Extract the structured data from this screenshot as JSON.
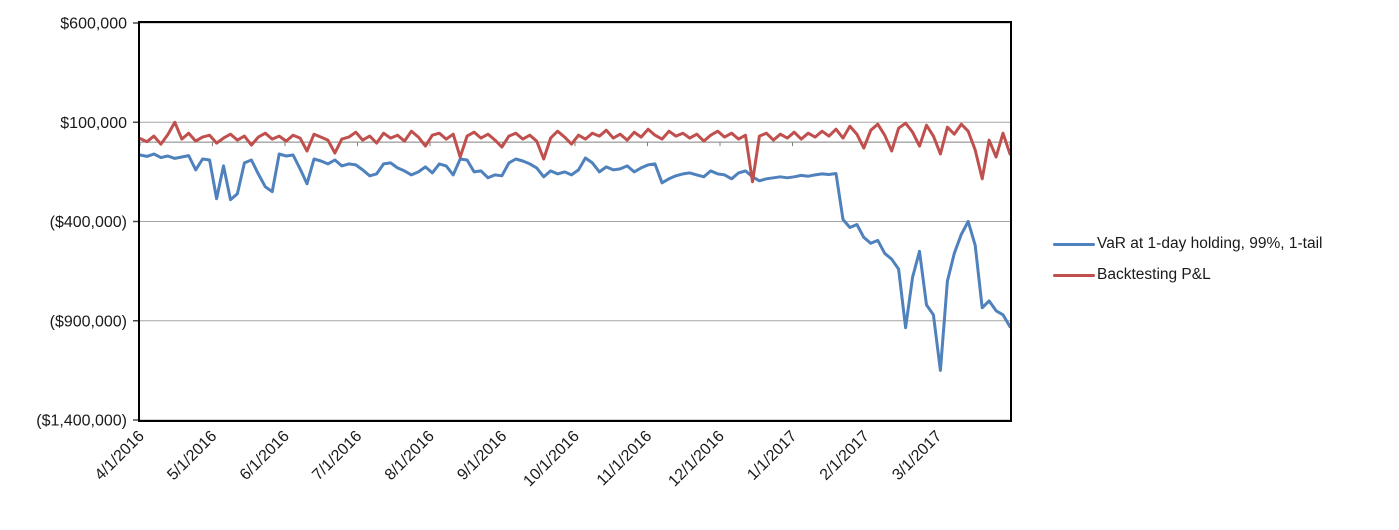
{
  "chart_data": {
    "type": "line",
    "title": "",
    "grid": true,
    "legend_position": "right",
    "x_axis": {
      "type": "date-category",
      "tick_labels": [
        "4/1/2016",
        "5/1/2016",
        "6/1/2016",
        "7/1/2016",
        "8/1/2016",
        "9/1/2016",
        "10/1/2016",
        "11/1/2016",
        "12/1/2016",
        "1/1/2017",
        "2/1/2017",
        "3/1/2017"
      ],
      "label_rotation_deg": -45
    },
    "y_axis": {
      "tick_labels": [
        "$600,000",
        "$100,000",
        "($400,000)",
        "($900,000)",
        "($1,400,000)"
      ],
      "tick_values": [
        600000,
        100000,
        -400000,
        -900000,
        -1400000
      ],
      "ylim": [
        -1400000,
        600000
      ],
      "zero_axis_line": true
    },
    "colors": {
      "grid_line": "#a6a6a6",
      "zero_axis": "#808080",
      "plot_border": "#000000",
      "tick_mark": "#4d4d4d",
      "text": "#1a1a1a"
    },
    "series": [
      {
        "name": "VaR at 1-day holding, 99%, 1-tail",
        "color": "#4F81BD",
        "values": [
          -65000,
          -72000,
          -60000,
          -78000,
          -70000,
          -82000,
          -75000,
          -68000,
          -140000,
          -85000,
          -90000,
          -285000,
          -120000,
          -290000,
          -260000,
          -105000,
          -90000,
          -160000,
          -225000,
          -250000,
          -60000,
          -70000,
          -65000,
          -135000,
          -210000,
          -85000,
          -95000,
          -110000,
          -90000,
          -120000,
          -110000,
          -115000,
          -140000,
          -170000,
          -160000,
          -110000,
          -105000,
          -130000,
          -145000,
          -165000,
          -150000,
          -125000,
          -155000,
          -110000,
          -120000,
          -165000,
          -85000,
          -90000,
          -150000,
          -145000,
          -180000,
          -165000,
          -170000,
          -105000,
          -85000,
          -95000,
          -110000,
          -130000,
          -175000,
          -145000,
          -160000,
          -150000,
          -165000,
          -140000,
          -80000,
          -105000,
          -150000,
          -125000,
          -140000,
          -135000,
          -120000,
          -150000,
          -130000,
          -115000,
          -110000,
          -205000,
          -185000,
          -170000,
          -160000,
          -155000,
          -165000,
          -175000,
          -145000,
          -160000,
          -165000,
          -185000,
          -155000,
          -145000,
          -175000,
          -195000,
          -185000,
          -180000,
          -175000,
          -180000,
          -175000,
          -168000,
          -172000,
          -165000,
          -160000,
          -163000,
          -158000,
          -390000,
          -430000,
          -415000,
          -480000,
          -510000,
          -495000,
          -560000,
          -590000,
          -640000,
          -935000,
          -680000,
          -550000,
          -820000,
          -870000,
          -1150000,
          -700000,
          -560000,
          -465000,
          -400000,
          -520000,
          -835000,
          -800000,
          -850000,
          -870000,
          -930000
        ]
      },
      {
        "name": "Backtesting P&L",
        "color": "#C0504D",
        "values": [
          18000,
          2000,
          30000,
          -10000,
          38000,
          100000,
          15000,
          45000,
          5000,
          25000,
          35000,
          -5000,
          20000,
          40000,
          10000,
          30000,
          -15000,
          25000,
          45000,
          15000,
          30000,
          5000,
          35000,
          20000,
          -45000,
          40000,
          25000,
          10000,
          -55000,
          15000,
          25000,
          50000,
          10000,
          30000,
          -5000,
          45000,
          20000,
          35000,
          5000,
          55000,
          25000,
          -20000,
          35000,
          45000,
          15000,
          40000,
          -75000,
          30000,
          50000,
          20000,
          40000,
          10000,
          -25000,
          30000,
          45000,
          15000,
          35000,
          5000,
          -85000,
          20000,
          55000,
          25000,
          -10000,
          35000,
          15000,
          45000,
          30000,
          60000,
          20000,
          40000,
          10000,
          50000,
          25000,
          65000,
          35000,
          15000,
          55000,
          30000,
          45000,
          20000,
          40000,
          5000,
          35000,
          55000,
          25000,
          45000,
          15000,
          35000,
          -200000,
          30000,
          45000,
          10000,
          40000,
          20000,
          50000,
          15000,
          45000,
          25000,
          55000,
          30000,
          65000,
          20000,
          80000,
          40000,
          -30000,
          60000,
          90000,
          35000,
          -45000,
          70000,
          95000,
          50000,
          -20000,
          85000,
          30000,
          -60000,
          75000,
          40000,
          90000,
          55000,
          -40000,
          -185000,
          10000,
          -75000,
          45000,
          -60000
        ]
      }
    ]
  },
  "legend": {
    "items": [
      {
        "label": "VaR at 1-day holding, 99%, 1-tail"
      },
      {
        "label": "Backtesting P&L"
      }
    ]
  }
}
